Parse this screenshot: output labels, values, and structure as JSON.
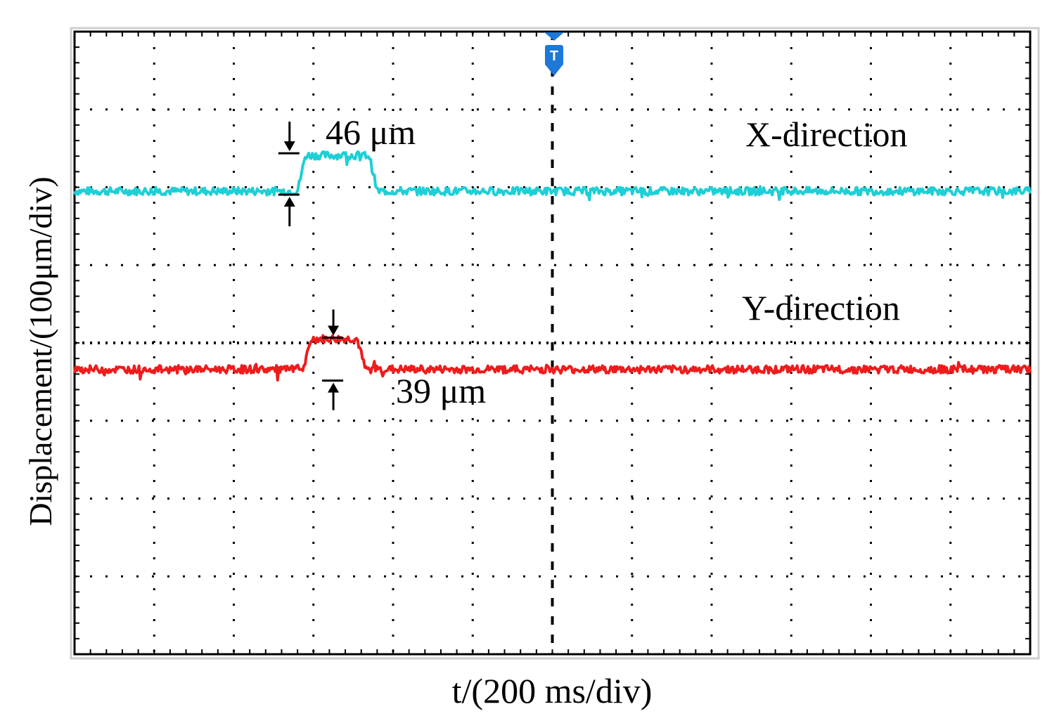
{
  "chart_data": {
    "type": "line",
    "title": "",
    "xlabel": "t/(200 ms/div)",
    "ylabel": "Displacement/(100μm/div)",
    "x_unit": "ms",
    "xlim": [
      0,
      2400
    ],
    "y_unit": "μm",
    "ylim": [
      -400,
      400
    ],
    "grid": true,
    "grid_divisions": {
      "x": 12,
      "y": 8
    },
    "series": [
      {
        "name": "X-direction",
        "color": "#1ecfd6",
        "points": [
          [
            0,
            195
          ],
          [
            560,
            195
          ],
          [
            580,
            241
          ],
          [
            740,
            241
          ],
          [
            760,
            195
          ],
          [
            2400,
            195
          ]
        ]
      },
      {
        "name": "Y-direction",
        "color": "#ee1c1c",
        "points": [
          [
            0,
            -34
          ],
          [
            575,
            -34
          ],
          [
            595,
            5
          ],
          [
            710,
            5
          ],
          [
            730,
            -34
          ],
          [
            2400,
            -34
          ]
        ]
      }
    ],
    "annotations": [
      {
        "text": "46 μm",
        "series": "X-direction"
      },
      {
        "text": "39 μm",
        "series": "Y-direction"
      }
    ],
    "trigger_marker": {
      "label": "T",
      "color": "#1e78d8"
    }
  }
}
